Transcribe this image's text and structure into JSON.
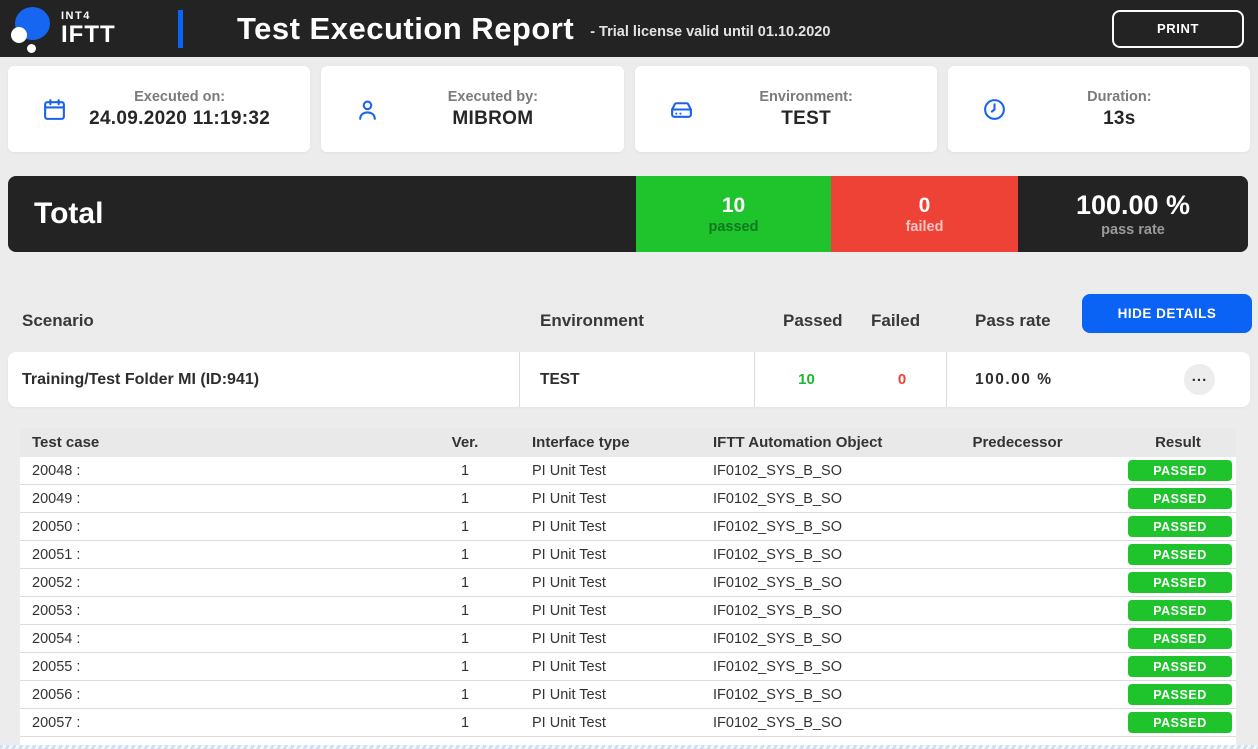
{
  "header": {
    "logo_top": "INT4",
    "logo_bottom": "IFTT",
    "title": "Test Execution Report",
    "license_note": "- Trial license valid until 01.10.2020",
    "print_label": "PRINT"
  },
  "info_cards": [
    {
      "icon": "calendar-icon",
      "label": "Executed on:",
      "value": "24.09.2020 11:19:32"
    },
    {
      "icon": "user-icon",
      "label": "Executed by:",
      "value": "MIBROM"
    },
    {
      "icon": "server-icon",
      "label": "Environment:",
      "value": "TEST"
    },
    {
      "icon": "clock-icon",
      "label": "Duration:",
      "value": "13s"
    }
  ],
  "totals": {
    "title": "Total",
    "passed": {
      "value": "10",
      "label": "passed"
    },
    "failed": {
      "value": "0",
      "label": "failed"
    },
    "pass_rate": {
      "value": "100.00 %",
      "label": "pass rate"
    }
  },
  "summary": {
    "columns": {
      "scenario": "Scenario",
      "environment": "Environment",
      "passed": "Passed",
      "failed": "Failed",
      "pass_rate": "Pass rate"
    },
    "hide_details_label": "HIDE DETAILS",
    "row": {
      "scenario": "Training/Test Folder MI (ID:941)",
      "environment": "TEST",
      "passed": "10",
      "failed": "0",
      "pass_rate": "100.00 %",
      "more_label": "..."
    }
  },
  "details": {
    "columns": [
      "Test case",
      "Ver.",
      "Interface type",
      "IFTT Automation Object",
      "Predecessor",
      "Result"
    ],
    "rows": [
      {
        "test_case": "20048 :",
        "version": "1",
        "interface_type": "PI Unit Test",
        "automation_object": "IF0102_SYS_B_SO",
        "predecessor": "",
        "result": "PASSED"
      },
      {
        "test_case": "20049 :",
        "version": "1",
        "interface_type": "PI Unit Test",
        "automation_object": "IF0102_SYS_B_SO",
        "predecessor": "",
        "result": "PASSED"
      },
      {
        "test_case": "20050 :",
        "version": "1",
        "interface_type": "PI Unit Test",
        "automation_object": "IF0102_SYS_B_SO",
        "predecessor": "",
        "result": "PASSED"
      },
      {
        "test_case": "20051 :",
        "version": "1",
        "interface_type": "PI Unit Test",
        "automation_object": "IF0102_SYS_B_SO",
        "predecessor": "",
        "result": "PASSED"
      },
      {
        "test_case": "20052 :",
        "version": "1",
        "interface_type": "PI Unit Test",
        "automation_object": "IF0102_SYS_B_SO",
        "predecessor": "",
        "result": "PASSED"
      },
      {
        "test_case": "20053 :",
        "version": "1",
        "interface_type": "PI Unit Test",
        "automation_object": "IF0102_SYS_B_SO",
        "predecessor": "",
        "result": "PASSED"
      },
      {
        "test_case": "20054 :",
        "version": "1",
        "interface_type": "PI Unit Test",
        "automation_object": "IF0102_SYS_B_SO",
        "predecessor": "",
        "result": "PASSED"
      },
      {
        "test_case": "20055 :",
        "version": "1",
        "interface_type": "PI Unit Test",
        "automation_object": "IF0102_SYS_B_SO",
        "predecessor": "",
        "result": "PASSED"
      },
      {
        "test_case": "20056 :",
        "version": "1",
        "interface_type": "PI Unit Test",
        "automation_object": "IF0102_SYS_B_SO",
        "predecessor": "",
        "result": "PASSED"
      },
      {
        "test_case": "20057 :",
        "version": "1",
        "interface_type": "PI Unit Test",
        "automation_object": "IF0102_SYS_B_SO",
        "predecessor": "",
        "result": "PASSED"
      }
    ]
  },
  "colors": {
    "accent_blue": "#0b63f5",
    "pass_green": "#1fc32c",
    "fail_red": "#ef4237",
    "dark_bar": "#232323"
  }
}
